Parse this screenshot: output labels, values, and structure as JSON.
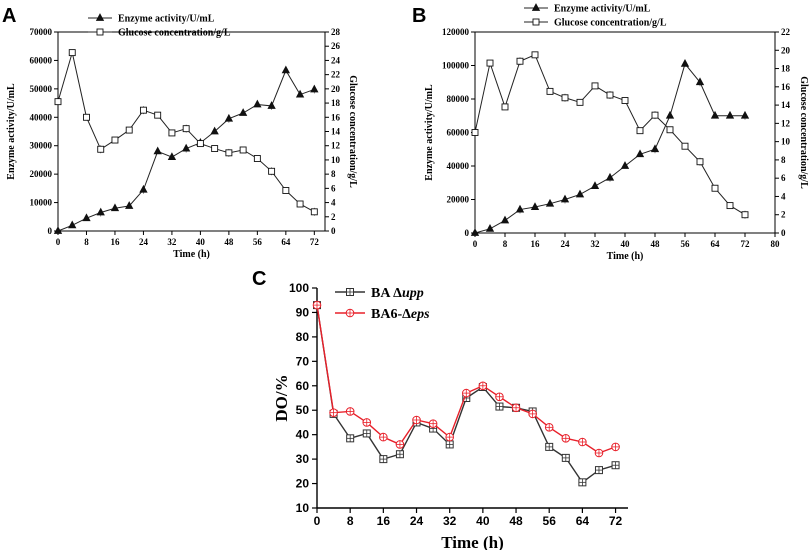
{
  "chart_data": [
    {
      "panel": "A",
      "type": "line",
      "xlabel": "Time (h)",
      "ylabel_left": "Enzyme activity/U/mL",
      "ylabel_right": "Glucose concentration/g/L",
      "x_ticks": [
        "0",
        "8",
        "16",
        "24",
        "32",
        "40",
        "48",
        "56",
        "64",
        "72"
      ],
      "y_left_ticks": [
        "0",
        "10000",
        "20000",
        "30000",
        "40000",
        "50000",
        "60000",
        "70000"
      ],
      "y_right_ticks": [
        "0",
        "2",
        "4",
        "6",
        "8",
        "10",
        "12",
        "14",
        "16",
        "18",
        "20",
        "22",
        "24",
        "26",
        "28"
      ],
      "xlim": [
        0,
        75
      ],
      "ylim_left": [
        0,
        70000
      ],
      "ylim_right": [
        0,
        28
      ],
      "legend": [
        "Enzyme activity/U/mL",
        "Glucose concentration/g/L"
      ],
      "series": [
        {
          "name": "Enzyme activity/U/mL",
          "axis": "left",
          "marker": "triangle-filled",
          "x": [
            0,
            4,
            8,
            12,
            16,
            20,
            24,
            28,
            32,
            36,
            40,
            44,
            48,
            52,
            56,
            60,
            64,
            68,
            72
          ],
          "values": [
            0,
            2000,
            4500,
            6500,
            8000,
            8800,
            14500,
            28000,
            26000,
            29000,
            31000,
            35000,
            39500,
            41500,
            44500,
            44000,
            56500,
            48000,
            49800
          ]
        },
        {
          "name": "Glucose concentration/g/L",
          "axis": "right",
          "marker": "square-open",
          "x": [
            0,
            4,
            8,
            12,
            16,
            20,
            24,
            28,
            32,
            36,
            40,
            44,
            48,
            52,
            56,
            60,
            64,
            68,
            72
          ],
          "values": [
            18.2,
            25.1,
            16.0,
            11.5,
            12.8,
            14.2,
            17.0,
            16.3,
            13.8,
            14.4,
            12.3,
            11.6,
            11.0,
            11.4,
            10.2,
            8.4,
            5.7,
            3.8,
            2.7
          ]
        }
      ]
    },
    {
      "panel": "B",
      "type": "line",
      "xlabel": "Time (h)",
      "ylabel_left": "Enzyme activity/U/mL",
      "ylabel_right": "Glucose concentration/g/L",
      "x_ticks": [
        "0",
        "8",
        "16",
        "24",
        "32",
        "40",
        "48",
        "56",
        "64",
        "72",
        "80"
      ],
      "y_left_ticks": [
        "0",
        "20000",
        "40000",
        "60000",
        "80000",
        "100000",
        "120000"
      ],
      "y_right_ticks": [
        "0",
        "2",
        "4",
        "6",
        "8",
        "10",
        "12",
        "14",
        "16",
        "18",
        "20",
        "22"
      ],
      "xlim": [
        0,
        80
      ],
      "ylim_left": [
        0,
        120000
      ],
      "ylim_right": [
        0,
        22
      ],
      "legend": [
        "Enzyme activity/U/mL",
        "Glucose concentration/g/L"
      ],
      "series": [
        {
          "name": "Enzyme activity/U/mL",
          "axis": "left",
          "marker": "triangle-filled",
          "x": [
            0,
            4,
            8,
            12,
            16,
            20,
            24,
            28,
            32,
            36,
            40,
            44,
            48,
            52,
            56,
            60,
            64,
            68,
            72
          ],
          "values": [
            0,
            2500,
            7500,
            14000,
            15500,
            17500,
            20000,
            23000,
            28000,
            33000,
            40000,
            47000,
            50000,
            70000,
            101000,
            90000,
            70000,
            70000,
            70000
          ]
        },
        {
          "name": "Glucose concentration/g/L",
          "axis": "right",
          "marker": "square-open",
          "x": [
            0,
            4,
            8,
            12,
            16,
            20,
            24,
            28,
            32,
            36,
            40,
            44,
            48,
            52,
            56,
            60,
            64,
            68,
            72
          ],
          "values": [
            11.0,
            18.6,
            13.8,
            18.8,
            19.5,
            15.5,
            14.8,
            14.3,
            16.1,
            15.1,
            14.5,
            11.2,
            12.9,
            11.3,
            9.5,
            7.8,
            4.9,
            3.0,
            2.0
          ]
        }
      ]
    },
    {
      "panel": "C",
      "type": "line",
      "xlabel": "Time (h)",
      "ylabel": "DO/%",
      "x_ticks": [
        "0",
        "8",
        "16",
        "24",
        "32",
        "40",
        "48",
        "56",
        "64",
        "72"
      ],
      "y_ticks": [
        "10",
        "20",
        "30",
        "40",
        "50",
        "60",
        "70",
        "80",
        "90",
        "100"
      ],
      "xlim": [
        0,
        75
      ],
      "ylim": [
        10,
        100
      ],
      "legend_prefix": [
        "BA Δ",
        "BA6-Δ"
      ],
      "legend_suffix": [
        "upp",
        "eps"
      ],
      "series": [
        {
          "name": "BA Δupp",
          "color": "#333333",
          "marker": "square-cross",
          "x": [
            0,
            4,
            8,
            12,
            16,
            20,
            24,
            28,
            32,
            36,
            40,
            44,
            48,
            52,
            56,
            60,
            64,
            68,
            72
          ],
          "values": [
            93,
            48.5,
            38.5,
            40.5,
            30,
            32,
            45,
            42.5,
            36,
            55,
            59.5,
            51.5,
            51,
            49.5,
            35,
            30.5,
            20.5,
            25.5,
            27.5
          ]
        },
        {
          "name": "BA6-Δeps",
          "color": "#e8202a",
          "marker": "circle-cross",
          "x": [
            0,
            4,
            8,
            12,
            16,
            20,
            24,
            28,
            32,
            36,
            40,
            44,
            48,
            52,
            56,
            60,
            64,
            68,
            72
          ],
          "values": [
            93,
            49,
            49.5,
            45,
            39,
            36,
            46,
            44.5,
            39,
            57,
            60,
            55.5,
            51,
            48.5,
            43,
            38.5,
            37,
            32.5,
            35
          ]
        }
      ]
    }
  ],
  "panel_labels": [
    "A",
    "B",
    "C"
  ]
}
